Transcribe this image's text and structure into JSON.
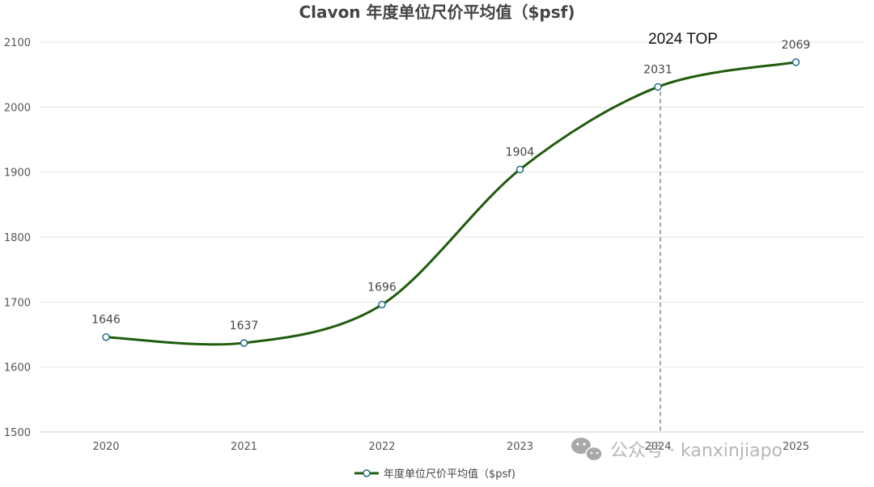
{
  "chart_data": {
    "type": "line",
    "title": "Clavon 年度单位尺价平均值（$psf)",
    "categories": [
      "2020",
      "2021",
      "2022",
      "2023",
      "2024",
      "2025"
    ],
    "series": [
      {
        "name": "年度单位尺价平均值（$psf)",
        "values": [
          1646,
          1637,
          1696,
          1904,
          2031,
          2069
        ],
        "color": "#1f5c0d",
        "smooth": true
      }
    ],
    "xlabel": "",
    "ylabel": "",
    "yticks": [
      1500,
      1600,
      1700,
      1800,
      1900,
      2000,
      2100
    ],
    "ylim": [
      1500,
      2100
    ],
    "grid": true,
    "legend": "bottom-center",
    "data_labels": true,
    "annotation": {
      "text": "2024 TOP",
      "category": "2024",
      "style": "dashed-vertical-line"
    }
  },
  "watermark": {
    "text": "公众号 · kanxinjiapo",
    "icon": "wechat-icon"
  },
  "colors": {
    "line": "#1f5c0d",
    "marker_stroke": "#1f6f8b",
    "grid": "#e6e6e6"
  }
}
